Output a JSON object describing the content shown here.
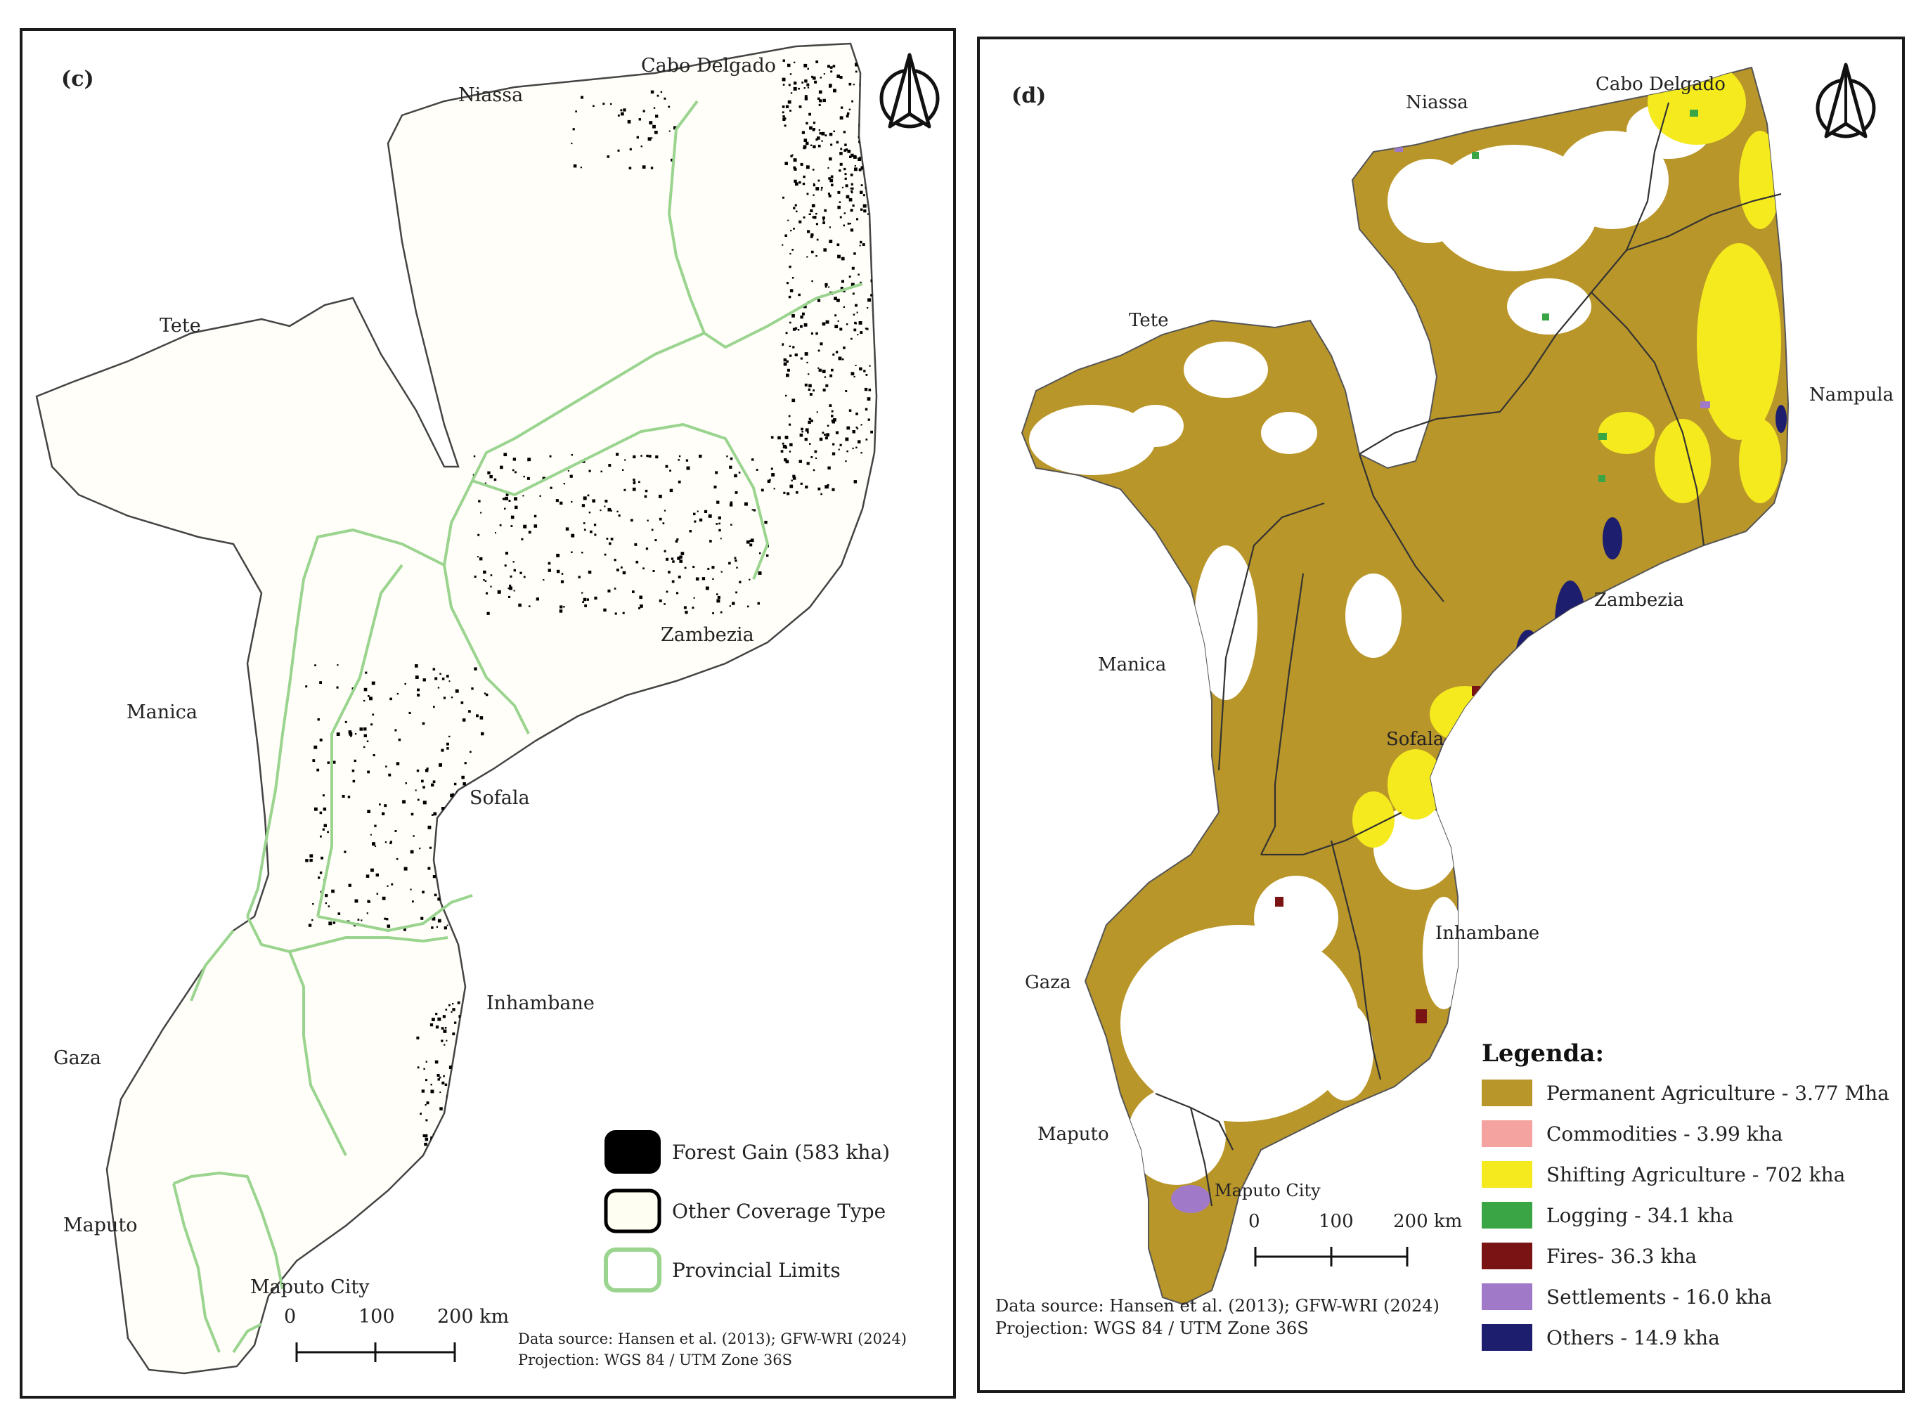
{
  "panel_c": {
    "label": "(c)",
    "provinces": [
      "Cabo Delgado",
      "Niassa",
      "Tete",
      "Manica",
      "Zambezia",
      "Sofala",
      "Inhambane",
      "Gaza",
      "Maputo",
      "Maputo City"
    ],
    "legend": [
      {
        "label": "Forest Gain (583 kha)",
        "fill": "#000000",
        "stroke": "#000000"
      },
      {
        "label": "Other Coverage Type",
        "fill": "#fffef3",
        "stroke": "#000000"
      },
      {
        "label": "Provincial Limits",
        "fill": "#ffffff",
        "stroke": "#9ad48f"
      }
    ],
    "scale": {
      "ticks": [
        "0",
        "100",
        "200 km"
      ]
    },
    "source": "Data source: Hansen et al. (2013); GFW-WRI (2024)",
    "projection": "Projection: WGS 84 / UTM Zone 36S"
  },
  "panel_d": {
    "label": "(d)",
    "provinces": [
      "Cabo Delgado",
      "Niassa",
      "Tete",
      "Nampula",
      "Zambezia",
      "Manica",
      "Sofala",
      "Inhambane",
      "Gaza",
      "Maputo",
      "Maputo City"
    ],
    "legend_title": "Legenda:",
    "legend": [
      {
        "label": "Permanent Agriculture - 3.77 Mha",
        "color": "#b9962a"
      },
      {
        "label": "Commodities - 3.99 kha",
        "color": "#f4a3a0"
      },
      {
        "label": "Shifting Agriculture - 702 kha",
        "color": "#f5ea1e"
      },
      {
        "label": "Logging - 34.1 kha",
        "color": "#3aa545"
      },
      {
        "label": "Fires- 36.3 kha",
        "color": "#7a1313"
      },
      {
        "label": "Settlements - 16.0 kha",
        "color": "#a07ac8"
      },
      {
        "label": "Others - 14.9 kha",
        "color": "#1d1f6e"
      }
    ],
    "scale": {
      "ticks": [
        "0",
        "100",
        "200 km"
      ]
    },
    "source": "Data source: Hansen et al. (2013); GFW-WRI (2024)",
    "projection": "Projection: WGS 84 / UTM Zone 36S"
  },
  "colors": {
    "province_line_c": "#9ad48f",
    "province_line_d": "#333333",
    "country_outline": "#444444",
    "land_c": "#fffef8",
    "permanent_agri": "#b9962a",
    "shifting_agri": "#f5ea1e"
  },
  "icons": {
    "north_arrow": "north-arrow-icon"
  }
}
